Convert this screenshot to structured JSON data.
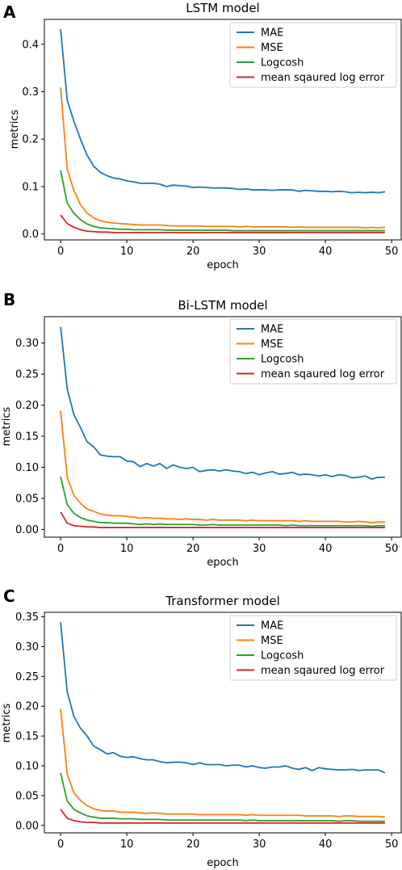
{
  "chart_data": [
    {
      "type": "line",
      "panel_label": "A",
      "title": "LSTM model",
      "xlabel": "epoch",
      "ylabel": "metrics",
      "xlim": [
        -2.45,
        51.45
      ],
      "ylim": [
        -0.0125,
        0.4525
      ],
      "xticks": [
        0,
        10,
        20,
        30,
        40,
        50
      ],
      "xtick_labels": [
        "0",
        "10",
        "20",
        "30",
        "40",
        "50"
      ],
      "yticks": [
        0.0,
        0.1,
        0.2,
        0.3,
        0.4
      ],
      "ytick_labels": [
        "0.0",
        "0.1",
        "0.2",
        "0.3",
        "0.4"
      ],
      "grid": false,
      "legend_position": "top-right",
      "x": [
        0,
        1,
        2,
        3,
        4,
        5,
        6,
        7,
        8,
        9,
        10,
        11,
        12,
        13,
        14,
        15,
        16,
        17,
        18,
        19,
        20,
        21,
        22,
        23,
        24,
        25,
        26,
        27,
        28,
        29,
        30,
        31,
        32,
        33,
        34,
        35,
        36,
        37,
        38,
        39,
        40,
        41,
        42,
        43,
        44,
        45,
        46,
        47,
        48,
        49
      ],
      "series": [
        {
          "name": "MAE",
          "color": "#1f77b4",
          "values": [
            0.432,
            0.282,
            0.238,
            0.2,
            0.166,
            0.143,
            0.13,
            0.123,
            0.118,
            0.116,
            0.112,
            0.11,
            0.107,
            0.107,
            0.107,
            0.105,
            0.1,
            0.103,
            0.102,
            0.101,
            0.098,
            0.099,
            0.098,
            0.097,
            0.097,
            0.097,
            0.096,
            0.094,
            0.095,
            0.093,
            0.093,
            0.093,
            0.092,
            0.093,
            0.093,
            0.093,
            0.09,
            0.092,
            0.091,
            0.09,
            0.09,
            0.089,
            0.09,
            0.089,
            0.087,
            0.088,
            0.087,
            0.088,
            0.087,
            0.089
          ]
        },
        {
          "name": "MSE",
          "color": "#ff7f0e",
          "values": [
            0.309,
            0.137,
            0.092,
            0.062,
            0.044,
            0.034,
            0.028,
            0.025,
            0.023,
            0.022,
            0.021,
            0.02,
            0.019,
            0.019,
            0.019,
            0.019,
            0.018,
            0.017,
            0.017,
            0.017,
            0.017,
            0.017,
            0.016,
            0.016,
            0.016,
            0.016,
            0.016,
            0.015,
            0.016,
            0.015,
            0.015,
            0.015,
            0.015,
            0.015,
            0.015,
            0.014,
            0.015,
            0.014,
            0.014,
            0.014,
            0.014,
            0.014,
            0.014,
            0.014,
            0.014,
            0.014,
            0.013,
            0.014,
            0.013,
            0.014
          ]
        },
        {
          "name": "Logcosh",
          "color": "#2ca02c",
          "values": [
            0.134,
            0.065,
            0.044,
            0.03,
            0.021,
            0.016,
            0.013,
            0.012,
            0.011,
            0.01,
            0.01,
            0.009,
            0.009,
            0.009,
            0.009,
            0.009,
            0.008,
            0.008,
            0.008,
            0.008,
            0.008,
            0.008,
            0.008,
            0.008,
            0.008,
            0.008,
            0.007,
            0.007,
            0.007,
            0.007,
            0.007,
            0.007,
            0.007,
            0.007,
            0.007,
            0.007,
            0.007,
            0.007,
            0.007,
            0.007,
            0.007,
            0.007,
            0.007,
            0.007,
            0.007,
            0.007,
            0.007,
            0.007,
            0.007,
            0.007
          ]
        },
        {
          "name": "mean sqaured log error",
          "color": "#d62728",
          "values": [
            0.04,
            0.022,
            0.014,
            0.009,
            0.006,
            0.005,
            0.004,
            0.004,
            0.003,
            0.003,
            0.003,
            0.003,
            0.003,
            0.003,
            0.003,
            0.003,
            0.003,
            0.003,
            0.003,
            0.003,
            0.003,
            0.003,
            0.003,
            0.003,
            0.003,
            0.003,
            0.003,
            0.003,
            0.003,
            0.003,
            0.003,
            0.003,
            0.003,
            0.003,
            0.003,
            0.003,
            0.003,
            0.003,
            0.003,
            0.003,
            0.003,
            0.003,
            0.003,
            0.003,
            0.003,
            0.003,
            0.003,
            0.003,
            0.003,
            0.003
          ]
        }
      ]
    },
    {
      "type": "line",
      "panel_label": "B",
      "title": "Bi-LSTM model",
      "xlabel": "epoch",
      "ylabel": "metrics",
      "xlim": [
        -2.45,
        51.45
      ],
      "ylim": [
        -0.0125,
        0.3425
      ],
      "xticks": [
        0,
        10,
        20,
        30,
        40,
        50
      ],
      "xtick_labels": [
        "0",
        "10",
        "20",
        "30",
        "40",
        "50"
      ],
      "yticks": [
        0.0,
        0.05,
        0.1,
        0.15,
        0.2,
        0.25,
        0.3
      ],
      "ytick_labels": [
        "0.00",
        "0.05",
        "0.10",
        "0.15",
        "0.20",
        "0.25",
        "0.30"
      ],
      "grid": false,
      "legend_position": "top-right",
      "x": [
        0,
        1,
        2,
        3,
        4,
        5,
        6,
        7,
        8,
        9,
        10,
        11,
        12,
        13,
        14,
        15,
        16,
        17,
        18,
        19,
        20,
        21,
        22,
        23,
        24,
        25,
        26,
        27,
        28,
        29,
        30,
        31,
        32,
        33,
        34,
        35,
        36,
        37,
        38,
        39,
        40,
        41,
        42,
        43,
        44,
        45,
        46,
        47,
        48,
        49
      ],
      "series": [
        {
          "name": "MAE",
          "color": "#1f77b4",
          "values": [
            0.326,
            0.226,
            0.185,
            0.164,
            0.141,
            0.133,
            0.12,
            0.118,
            0.117,
            0.117,
            0.11,
            0.109,
            0.101,
            0.106,
            0.102,
            0.106,
            0.098,
            0.104,
            0.1,
            0.098,
            0.1,
            0.093,
            0.095,
            0.096,
            0.094,
            0.096,
            0.094,
            0.093,
            0.09,
            0.092,
            0.088,
            0.091,
            0.093,
            0.089,
            0.09,
            0.092,
            0.088,
            0.089,
            0.088,
            0.086,
            0.088,
            0.085,
            0.088,
            0.087,
            0.083,
            0.084,
            0.086,
            0.081,
            0.084,
            0.084
          ]
        },
        {
          "name": "MSE",
          "color": "#ff7f0e",
          "values": [
            0.191,
            0.084,
            0.055,
            0.042,
            0.033,
            0.029,
            0.025,
            0.023,
            0.022,
            0.022,
            0.021,
            0.02,
            0.018,
            0.019,
            0.018,
            0.018,
            0.017,
            0.017,
            0.016,
            0.017,
            0.016,
            0.016,
            0.015,
            0.016,
            0.015,
            0.015,
            0.015,
            0.015,
            0.014,
            0.015,
            0.014,
            0.014,
            0.014,
            0.014,
            0.014,
            0.014,
            0.013,
            0.014,
            0.013,
            0.013,
            0.013,
            0.013,
            0.013,
            0.012,
            0.012,
            0.013,
            0.012,
            0.011,
            0.012,
            0.012
          ]
        },
        {
          "name": "Logcosh",
          "color": "#2ca02c",
          "values": [
            0.085,
            0.04,
            0.026,
            0.019,
            0.015,
            0.013,
            0.011,
            0.011,
            0.01,
            0.01,
            0.01,
            0.009,
            0.008,
            0.009,
            0.008,
            0.009,
            0.008,
            0.008,
            0.008,
            0.008,
            0.008,
            0.007,
            0.007,
            0.008,
            0.007,
            0.007,
            0.007,
            0.007,
            0.007,
            0.007,
            0.007,
            0.007,
            0.007,
            0.007,
            0.006,
            0.007,
            0.006,
            0.006,
            0.006,
            0.006,
            0.006,
            0.006,
            0.006,
            0.006,
            0.006,
            0.006,
            0.006,
            0.005,
            0.006,
            0.006
          ]
        },
        {
          "name": "mean sqaured log error",
          "color": "#d62728",
          "values": [
            0.028,
            0.01,
            0.006,
            0.005,
            0.004,
            0.004,
            0.003,
            0.003,
            0.003,
            0.003,
            0.003,
            0.003,
            0.003,
            0.003,
            0.003,
            0.003,
            0.003,
            0.003,
            0.003,
            0.003,
            0.003,
            0.003,
            0.003,
            0.003,
            0.003,
            0.003,
            0.003,
            0.003,
            0.003,
            0.003,
            0.003,
            0.003,
            0.003,
            0.003,
            0.003,
            0.003,
            0.003,
            0.003,
            0.003,
            0.003,
            0.003,
            0.003,
            0.003,
            0.003,
            0.003,
            0.003,
            0.003,
            0.003,
            0.003,
            0.003
          ]
        }
      ]
    },
    {
      "type": "line",
      "panel_label": "C",
      "title": "Transformer model",
      "xlabel": "epoch",
      "ylabel": "metrics",
      "xlim": [
        -2.45,
        51.45
      ],
      "ylim": [
        -0.0125,
        0.3575
      ],
      "xticks": [
        0,
        10,
        20,
        30,
        40,
        50
      ],
      "xtick_labels": [
        "0",
        "10",
        "20",
        "30",
        "40",
        "50"
      ],
      "yticks": [
        0.0,
        0.05,
        0.1,
        0.15,
        0.2,
        0.25,
        0.3,
        0.35
      ],
      "ytick_labels": [
        "0.00",
        "0.05",
        "0.10",
        "0.15",
        "0.20",
        "0.25",
        "0.30",
        "0.35"
      ],
      "grid": false,
      "legend_position": "top-right",
      "x": [
        0,
        1,
        2,
        3,
        4,
        5,
        6,
        7,
        8,
        9,
        10,
        11,
        12,
        13,
        14,
        15,
        16,
        17,
        18,
        19,
        20,
        21,
        22,
        23,
        24,
        25,
        26,
        27,
        28,
        29,
        30,
        31,
        32,
        33,
        34,
        35,
        36,
        37,
        38,
        39,
        40,
        41,
        42,
        43,
        44,
        45,
        46,
        47,
        48,
        49
      ],
      "series": [
        {
          "name": "MAE",
          "color": "#1f77b4",
          "values": [
            0.341,
            0.224,
            0.183,
            0.163,
            0.15,
            0.133,
            0.127,
            0.12,
            0.122,
            0.116,
            0.114,
            0.115,
            0.112,
            0.11,
            0.11,
            0.107,
            0.105,
            0.106,
            0.106,
            0.105,
            0.102,
            0.105,
            0.102,
            0.102,
            0.102,
            0.1,
            0.101,
            0.101,
            0.098,
            0.1,
            0.097,
            0.096,
            0.098,
            0.098,
            0.1,
            0.096,
            0.094,
            0.097,
            0.092,
            0.097,
            0.095,
            0.094,
            0.093,
            0.093,
            0.094,
            0.092,
            0.093,
            0.093,
            0.093,
            0.088
          ]
        },
        {
          "name": "MSE",
          "color": "#ff7f0e",
          "values": [
            0.196,
            0.086,
            0.055,
            0.042,
            0.033,
            0.028,
            0.025,
            0.024,
            0.024,
            0.022,
            0.022,
            0.022,
            0.021,
            0.02,
            0.021,
            0.02,
            0.019,
            0.019,
            0.019,
            0.019,
            0.019,
            0.018,
            0.018,
            0.018,
            0.018,
            0.018,
            0.018,
            0.018,
            0.017,
            0.018,
            0.017,
            0.017,
            0.017,
            0.017,
            0.017,
            0.017,
            0.017,
            0.016,
            0.016,
            0.016,
            0.016,
            0.016,
            0.015,
            0.016,
            0.016,
            0.015,
            0.015,
            0.015,
            0.015,
            0.014
          ]
        },
        {
          "name": "Logcosh",
          "color": "#2ca02c",
          "values": [
            0.088,
            0.041,
            0.027,
            0.021,
            0.016,
            0.014,
            0.012,
            0.012,
            0.012,
            0.011,
            0.011,
            0.011,
            0.01,
            0.01,
            0.01,
            0.01,
            0.009,
            0.009,
            0.009,
            0.009,
            0.009,
            0.009,
            0.009,
            0.009,
            0.009,
            0.009,
            0.009,
            0.009,
            0.008,
            0.009,
            0.008,
            0.008,
            0.008,
            0.008,
            0.008,
            0.008,
            0.008,
            0.008,
            0.008,
            0.008,
            0.008,
            0.008,
            0.007,
            0.008,
            0.008,
            0.007,
            0.007,
            0.007,
            0.007,
            0.007
          ]
        },
        {
          "name": "mean sqaured log error",
          "color": "#d62728",
          "values": [
            0.027,
            0.012,
            0.008,
            0.006,
            0.005,
            0.005,
            0.004,
            0.004,
            0.004,
            0.004,
            0.004,
            0.004,
            0.004,
            0.004,
            0.004,
            0.004,
            0.004,
            0.004,
            0.004,
            0.004,
            0.004,
            0.004,
            0.004,
            0.004,
            0.004,
            0.004,
            0.004,
            0.004,
            0.004,
            0.004,
            0.004,
            0.004,
            0.004,
            0.004,
            0.004,
            0.004,
            0.004,
            0.004,
            0.004,
            0.004,
            0.004,
            0.004,
            0.004,
            0.004,
            0.004,
            0.004,
            0.004,
            0.004,
            0.004,
            0.004
          ]
        }
      ]
    }
  ]
}
